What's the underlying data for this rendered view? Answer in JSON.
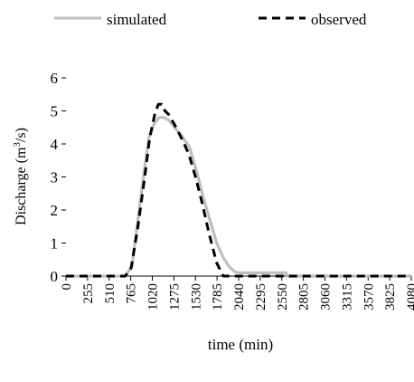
{
  "chart_data": {
    "type": "line",
    "xlabel": "time (min)",
    "ylabel_text": "Discharge (m",
    "ylabel_sup": "3",
    "ylabel_tail": "/s)",
    "ylim": [
      0,
      6
    ],
    "xlim": [
      0,
      4080
    ],
    "yticks": [
      0,
      1,
      2,
      3,
      4,
      5,
      6
    ],
    "xticks": [
      0,
      255,
      510,
      765,
      1020,
      1275,
      1530,
      1785,
      2040,
      2295,
      2550,
      2805,
      3060,
      3315,
      3570,
      3825,
      4080
    ],
    "legend_position": "top",
    "series": [
      {
        "name": "simulated",
        "style": "solid",
        "color": "#bfbfbf",
        "x": [
          0,
          700,
          780,
          850,
          920,
          980,
          1040,
          1100,
          1160,
          1220,
          1300,
          1380,
          1460,
          1540,
          1620,
          1700,
          1780,
          1860,
          1940,
          2000,
          2060,
          2200,
          2400,
          2600,
          2620,
          3000,
          3500,
          4080
        ],
        "y": [
          0,
          0,
          0.3,
          1.7,
          3.1,
          4.2,
          4.6,
          4.8,
          4.8,
          4.7,
          4.45,
          4.2,
          3.9,
          3.2,
          2.4,
          1.7,
          1.0,
          0.55,
          0.25,
          0.12,
          0.1,
          0.1,
          0.1,
          0.1,
          0,
          0,
          0,
          0
        ]
      },
      {
        "name": "observed",
        "style": "dashed",
        "color": "#000000",
        "x": [
          0,
          700,
          770,
          850,
          930,
          990,
          1050,
          1090,
          1130,
          1170,
          1210,
          1280,
          1360,
          1450,
          1530,
          1610,
          1690,
          1780,
          1860,
          1900,
          2000,
          2550,
          3060,
          4080
        ],
        "y": [
          0,
          0,
          0.25,
          1.5,
          3.0,
          4.2,
          4.9,
          5.2,
          5.2,
          5.0,
          4.9,
          4.6,
          4.2,
          3.7,
          3.0,
          2.2,
          1.3,
          0.4,
          0,
          0,
          0,
          0,
          0,
          0
        ]
      }
    ]
  }
}
